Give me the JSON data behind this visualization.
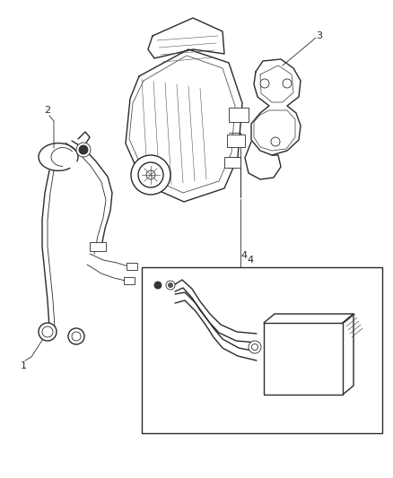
{
  "background_color": "#ffffff",
  "fig_width": 4.38,
  "fig_height": 5.33,
  "dpi": 100,
  "label_1": "1",
  "label_2": "2",
  "label_3": "3",
  "label_4": "4",
  "label_fontsize": 8,
  "line_color": "#2a2a2a",
  "line_color_light": "#555555"
}
